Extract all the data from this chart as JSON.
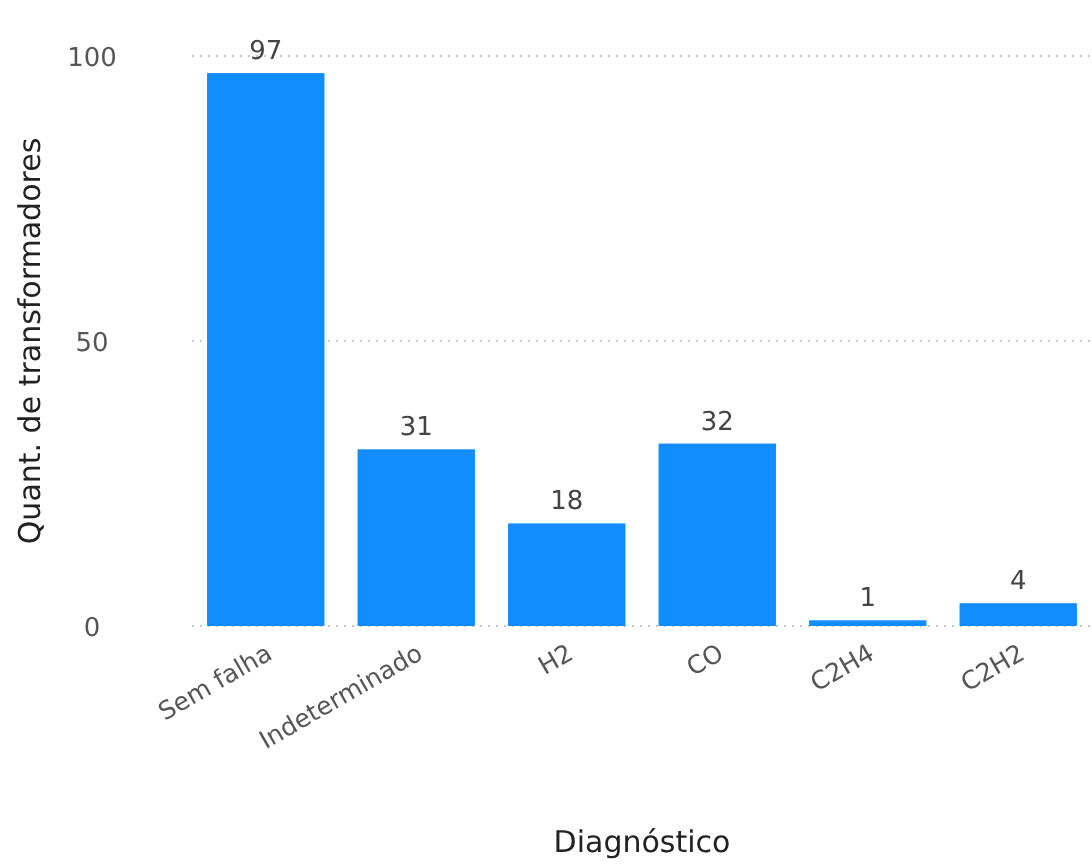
{
  "chart_data": {
    "type": "bar",
    "xlabel": "Diagnóstico",
    "ylabel": "Quant. de transformadores",
    "categories": [
      "Sem falha",
      "Indeterminado",
      "H2",
      "CO",
      "C2H4",
      "C2H2"
    ],
    "values": [
      97,
      31,
      18,
      32,
      1,
      4
    ],
    "color": "#118dff",
    "ylim": [
      0,
      100
    ],
    "yticks": [
      0,
      50,
      100
    ],
    "grid": "y",
    "data_labels": true
  }
}
